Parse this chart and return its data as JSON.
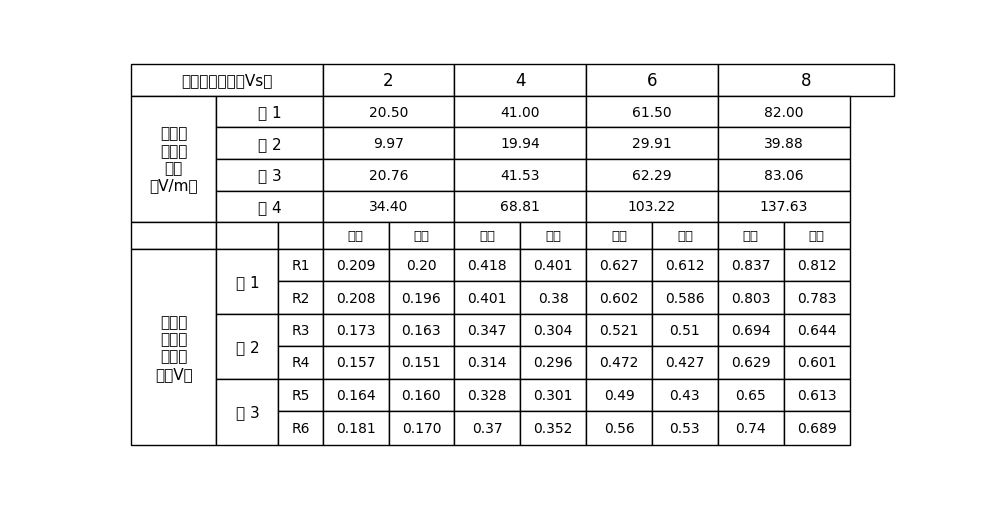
{
  "title": "激励源电压值（Vs）",
  "voltage_cols": [
    "2",
    "4",
    "6",
    "8"
  ],
  "field_label_lines": [
    "线缆周",
    "围电场",
    "峰值",
    "（V/m）"
  ],
  "field_rows": [
    {
      "line": "线 1",
      "values": [
        "20.50",
        "41.00",
        "61.50",
        "82.00"
      ]
    },
    {
      "line": "线 2",
      "values": [
        "9.97",
        "19.94",
        "29.91",
        "39.88"
      ]
    },
    {
      "line": "线 3",
      "values": [
        "20.76",
        "41.53",
        "62.29",
        "83.06"
      ]
    },
    {
      "line": "线 4",
      "values": [
        "34.40",
        "68.81",
        "103.22",
        "137.63"
      ]
    }
  ],
  "voltage_label_lines": [
    "负载上",
    "的电压",
    "响应峰",
    "值（V）"
  ],
  "sim_label": "模拟",
  "meas_label": "实测",
  "voltage_rows": [
    {
      "group": "线 1",
      "resistor": "R1",
      "values": [
        [
          "0.209",
          "0.20"
        ],
        [
          "0.418",
          "0.401"
        ],
        [
          "0.627",
          "0.612"
        ],
        [
          "0.837",
          "0.812"
        ]
      ]
    },
    {
      "group": "线 1",
      "resistor": "R2",
      "values": [
        [
          "0.208",
          "0.196"
        ],
        [
          "0.401",
          "0.38"
        ],
        [
          "0.602",
          "0.586"
        ],
        [
          "0.803",
          "0.783"
        ]
      ]
    },
    {
      "group": "线 2",
      "resistor": "R3",
      "values": [
        [
          "0.173",
          "0.163"
        ],
        [
          "0.347",
          "0.304"
        ],
        [
          "0.521",
          "0.51"
        ],
        [
          "0.694",
          "0.644"
        ]
      ]
    },
    {
      "group": "线 2",
      "resistor": "R4",
      "values": [
        [
          "0.157",
          "0.151"
        ],
        [
          "0.314",
          "0.296"
        ],
        [
          "0.472",
          "0.427"
        ],
        [
          "0.629",
          "0.601"
        ]
      ]
    },
    {
      "group": "线 3",
      "resistor": "R5",
      "values": [
        [
          "0.164",
          "0.160"
        ],
        [
          "0.328",
          "0.301"
        ],
        [
          "0.49",
          "0.43"
        ],
        [
          "0.65",
          "0.613"
        ]
      ]
    },
    {
      "group": "线 3",
      "resistor": "R6",
      "values": [
        [
          "0.181",
          "0.170"
        ],
        [
          "0.37",
          "0.352"
        ],
        [
          "0.56",
          "0.53"
        ],
        [
          "0.74",
          "0.689"
        ]
      ]
    }
  ],
  "bg_color": "#ffffff",
  "lw": 1.0,
  "font_size_header": 11,
  "font_size_data": 10,
  "font_size_subheader": 9.5
}
